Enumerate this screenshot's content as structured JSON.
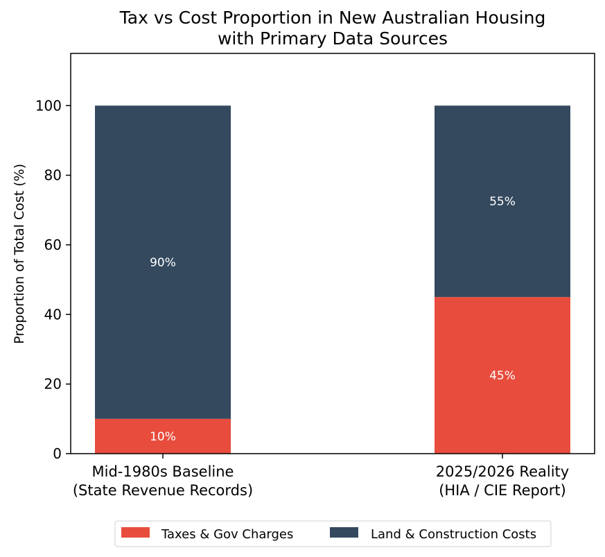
{
  "chart_data": {
    "type": "bar",
    "stacked": true,
    "title": [
      "Tax vs Cost Proportion in New Australian Housing",
      "with Primary Data Sources"
    ],
    "xlabel": "",
    "ylabel": "Proportion of Total Cost (%)",
    "ylim": [
      0,
      115
    ],
    "yticks": [
      0,
      20,
      40,
      60,
      80,
      100
    ],
    "categories": [
      [
        "Mid-1980s Baseline",
        "(State Revenue Records)"
      ],
      [
        "2025/2026 Reality",
        "(HIA / CIE Report)"
      ]
    ],
    "series": [
      {
        "name": "Taxes & Gov Charges",
        "color": "#e84c3d",
        "values": [
          10,
          45
        ],
        "labels": [
          "10%",
          "45%"
        ]
      },
      {
        "name": "Land & Construction Costs",
        "color": "#34495e",
        "values": [
          90,
          55
        ],
        "labels": [
          "90%",
          "55%"
        ]
      }
    ],
    "grid": false,
    "legend": "bottom-center"
  }
}
